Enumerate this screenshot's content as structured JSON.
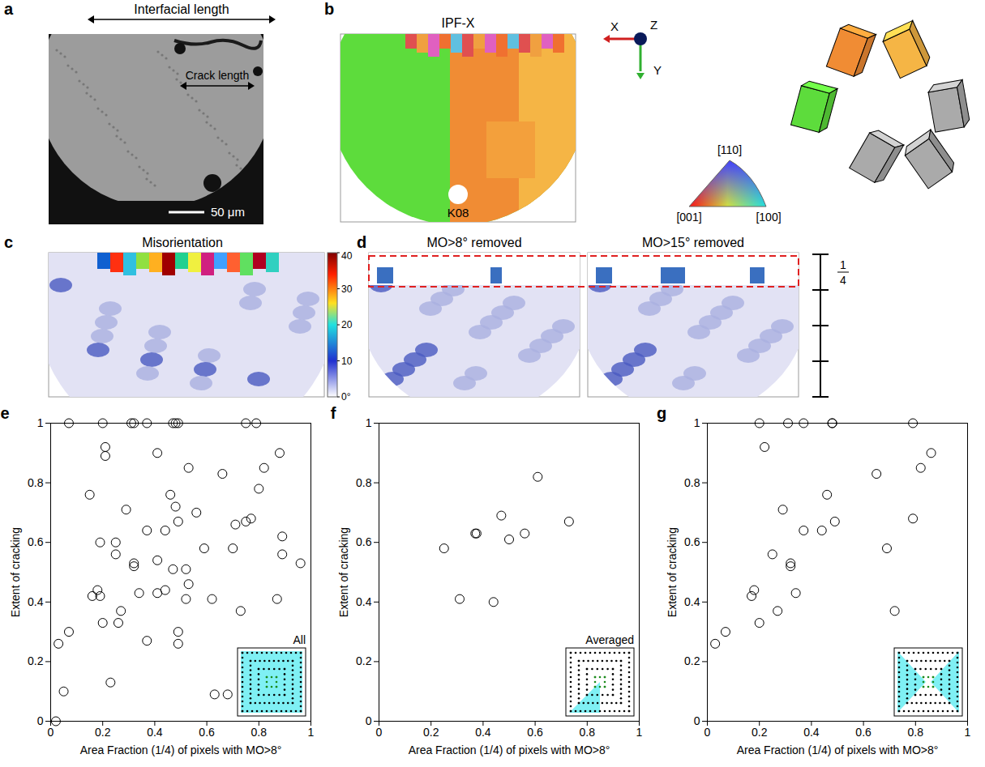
{
  "chart_data": [
    {
      "type": "scatter",
      "panel_label": "e",
      "annotation": "All",
      "xlabel": "Area Fraction (1/4) of pixels with MO>8°",
      "ylabel": "Extent of cracking",
      "color": "black",
      "marker": "circle",
      "xlim": [
        0,
        1
      ],
      "ylim": [
        0,
        1
      ],
      "xticks": [
        0,
        0.2,
        0.4,
        0.6,
        0.8,
        1
      ],
      "yticks": [
        0,
        0.2,
        0.4,
        0.6,
        0.8,
        1
      ],
      "x": [
        0.07,
        0.2,
        0.31,
        0.32,
        0.37,
        0.47,
        0.48,
        0.49,
        0.75,
        0.79,
        0.21,
        0.21,
        0.41,
        0.88,
        0.53,
        0.82,
        0.66,
        0.8,
        0.15,
        0.46,
        0.48,
        0.29,
        0.56,
        0.77,
        0.75,
        0.49,
        0.71,
        0.37,
        0.44,
        0.89,
        0.25,
        0.19,
        0.7,
        0.59,
        0.25,
        0.89,
        0.41,
        0.32,
        0.32,
        0.52,
        0.47,
        0.96,
        0.53,
        0.44,
        0.41,
        0.34,
        0.18,
        0.16,
        0.19,
        0.52,
        0.62,
        0.87,
        0.73,
        0.27,
        0.26,
        0.2,
        0.49,
        0.37,
        0.07,
        0.03,
        0.49,
        0.23,
        0.05,
        0.63,
        0.68,
        0.02
      ],
      "values": [
        1,
        1,
        1,
        1,
        1,
        1,
        1,
        1,
        1,
        1,
        0.92,
        0.89,
        0.9,
        0.9,
        0.85,
        0.85,
        0.83,
        0.78,
        0.76,
        0.76,
        0.72,
        0.71,
        0.7,
        0.68,
        0.67,
        0.67,
        0.66,
        0.64,
        0.64,
        0.62,
        0.6,
        0.6,
        0.58,
        0.58,
        0.56,
        0.56,
        0.54,
        0.53,
        0.52,
        0.51,
        0.51,
        0.53,
        0.46,
        0.44,
        0.43,
        0.43,
        0.44,
        0.42,
        0.42,
        0.41,
        0.41,
        0.41,
        0.37,
        0.37,
        0.33,
        0.33,
        0.3,
        0.27,
        0.3,
        0.26,
        0.26,
        0.13,
        0.1,
        0.09,
        0.09,
        0
      ]
    },
    {
      "type": "scatter",
      "panel_label": "f",
      "annotation": "Averaged",
      "xlabel": "Area Fraction (1/4) of pixels with MO>8°",
      "ylabel": "Extent of cracking",
      "color": "black",
      "marker": "circle",
      "xlim": [
        0,
        1
      ],
      "ylim": [
        0,
        1
      ],
      "xticks": [
        0,
        0.2,
        0.4,
        0.6,
        0.8,
        1
      ],
      "yticks": [
        0,
        0.2,
        0.4,
        0.6,
        0.8,
        1
      ],
      "x": [
        0.25,
        0.37,
        0.375,
        0.61,
        0.47,
        0.5,
        0.56,
        0.73,
        0.31,
        0.44
      ],
      "values": [
        0.58,
        0.63,
        0.63,
        0.82,
        0.69,
        0.61,
        0.63,
        0.67,
        0.41,
        0.4
      ]
    },
    {
      "type": "scatter",
      "panel_label": "g",
      "xlabel": "Area Fraction (1/4) of pixels with MO>8°",
      "ylabel": "Extent of cracking",
      "color": "black",
      "marker": "circle",
      "xlim": [
        0,
        1
      ],
      "ylim": [
        0,
        1
      ],
      "xticks": [
        0,
        0.2,
        0.4,
        0.6,
        0.8,
        1
      ],
      "yticks": [
        0,
        0.2,
        0.4,
        0.6,
        0.8,
        1
      ],
      "x": [
        0.2,
        0.31,
        0.37,
        0.48,
        0.48,
        0.79,
        0.22,
        0.86,
        0.82,
        0.65,
        0.46,
        0.29,
        0.79,
        0.49,
        0.37,
        0.44,
        0.69,
        0.25,
        0.32,
        0.32,
        0.34,
        0.18,
        0.17,
        0.72,
        0.27,
        0.2,
        0.07,
        0.03
      ],
      "values": [
        1,
        1,
        1,
        1,
        1,
        1,
        0.92,
        0.9,
        0.85,
        0.83,
        0.76,
        0.71,
        0.68,
        0.67,
        0.64,
        0.64,
        0.58,
        0.56,
        0.53,
        0.52,
        0.43,
        0.44,
        0.42,
        0.37,
        0.37,
        0.33,
        0.3,
        0.26
      ]
    }
  ],
  "image_panels": {
    "a": {
      "panel_label": "a",
      "interfacial_length": "Interfacial length",
      "crack_length": "Crack length",
      "scale_bar": "50 μm"
    },
    "b": {
      "panel_label": "b",
      "title": "IPF-X",
      "sample": "K08",
      "axes": [
        "X",
        "Y",
        "Z"
      ],
      "triangle_labels": [
        "[110]",
        "[001]",
        "[100]"
      ]
    },
    "c": {
      "panel_label": "c",
      "title": "Misorientation",
      "colorbar": {
        "range": [
          0,
          40
        ],
        "ticks": [
          {
            "value": 0,
            "label": "0°"
          },
          10,
          20,
          30,
          40
        ]
      }
    },
    "d": {
      "panel_label": "d",
      "titles": [
        "MO>8° removed",
        "MO>15° removed"
      ],
      "fraction": "1/4"
    }
  }
}
